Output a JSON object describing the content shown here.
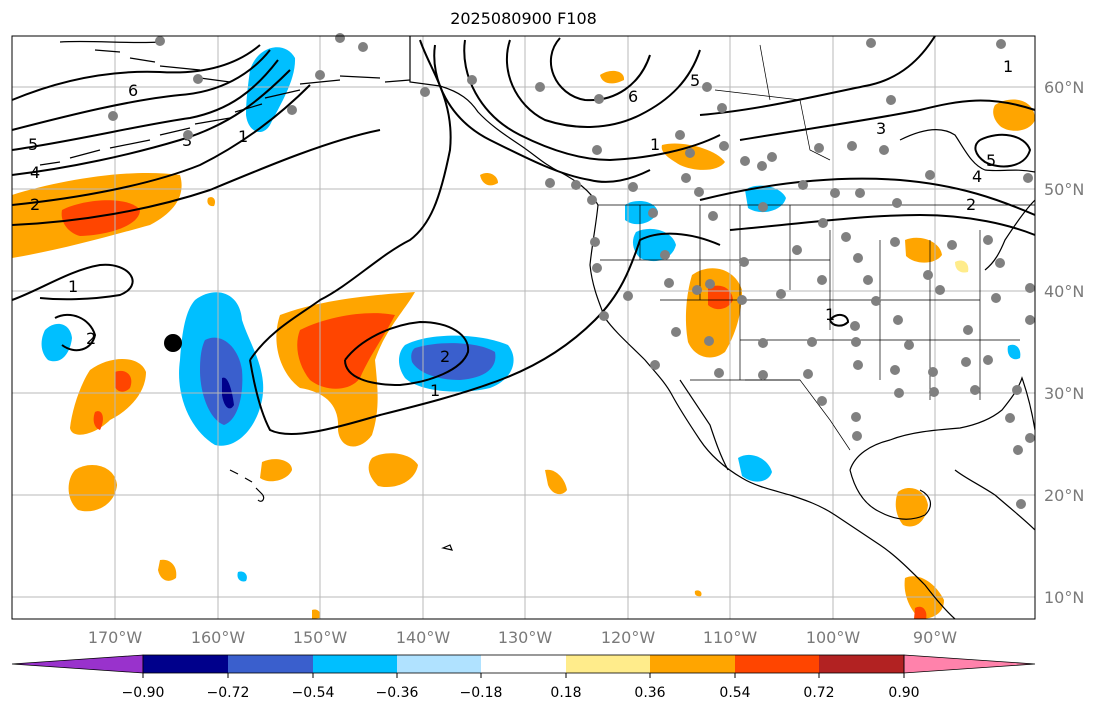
{
  "title": "2025080900 F108",
  "lon_labels": [
    "170°W",
    "160°W",
    "150°W",
    "140°W",
    "130°W",
    "120°W",
    "110°W",
    "100°W",
    "90°W"
  ],
  "lat_labels": [
    "10°N",
    "20°N",
    "30°N",
    "40°N",
    "50°N",
    "60°N"
  ],
  "colorbar": {
    "colors": [
      "#9932cc",
      "#00008b",
      "#3a5fcd",
      "#00bfff",
      "#b0e2ff",
      "#ffffff",
      "#ffec8b",
      "#ffa500",
      "#ff4500",
      "#b22222",
      "#ff82ab"
    ],
    "tick_labels": [
      "−0.90",
      "−0.72",
      "−0.54",
      "−0.36",
      "−0.18",
      "0.18",
      "0.36",
      "0.54",
      "0.72",
      "0.90"
    ]
  },
  "contour_labels": [
    "6",
    "5",
    "4",
    "2",
    "1",
    "2",
    "3",
    "1",
    "1",
    "2",
    "1",
    "6",
    "5",
    "3",
    "5",
    "4",
    "2",
    "1",
    "1"
  ]
}
